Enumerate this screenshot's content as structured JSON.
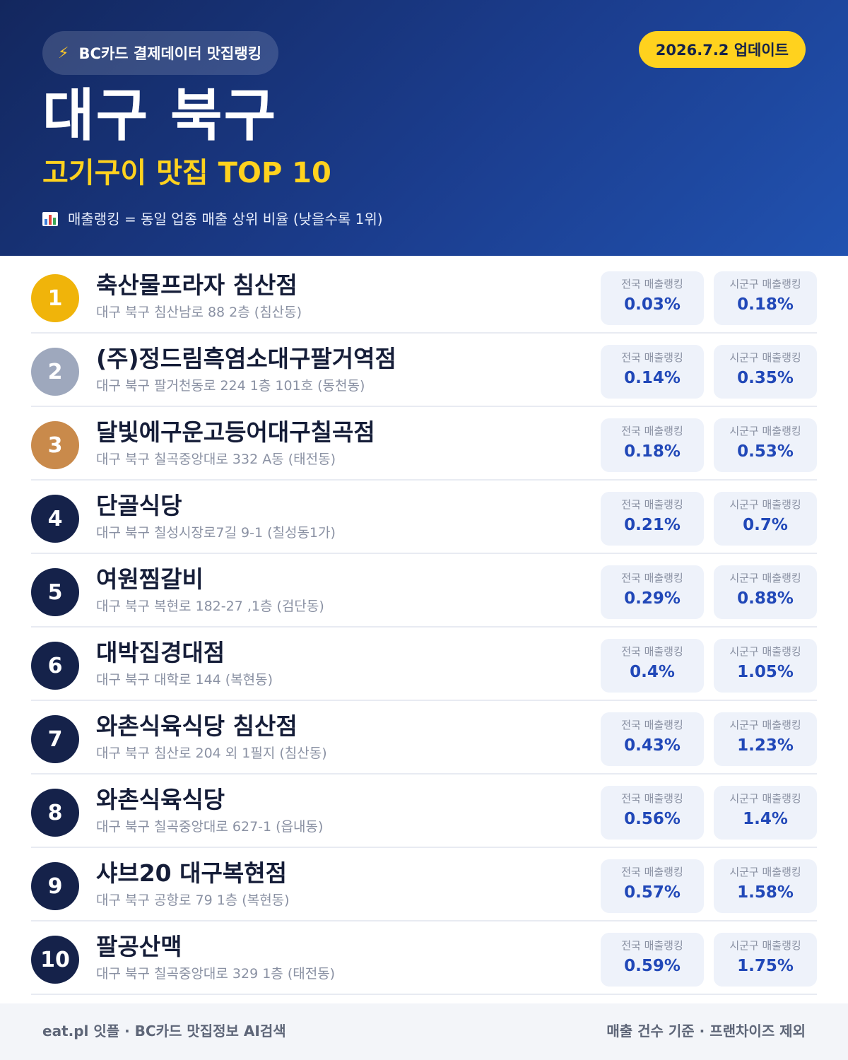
{
  "header": {
    "source_badge": "BC카드 결제데이터 맛집랭킹",
    "update_badge": "2026.7.2 업데이트",
    "region": "대구 북구",
    "category": "고기구이 맛집 TOP 10",
    "note": "매출랭킹 = 동일 업종 매출 상위 비율 (낮을수록 1위)",
    "icons": {
      "bolt": "lightning-icon",
      "chart": "bar-chart-icon"
    }
  },
  "stat_labels": {
    "national": "전국 매출랭킹",
    "local": "시군구 매출랭킹"
  },
  "colors": {
    "gold": "#f0b40a",
    "silver": "#9ea8bd",
    "bronze": "#c98a4b",
    "navy": "#15224a",
    "accent_yellow": "#ffd21e",
    "value_blue": "#2148b8"
  },
  "restaurants": [
    {
      "rank": "1",
      "name": "축산물프라자 침산점",
      "address": "대구 북구 침산남로 88 2층 (침산동)",
      "national": "0.03%",
      "local": "0.18%",
      "medal": "gold"
    },
    {
      "rank": "2",
      "name": "(주)정드림흑염소대구팔거역점",
      "address": "대구 북구 팔거천동로 224 1층 101호 (동천동)",
      "national": "0.14%",
      "local": "0.35%",
      "medal": "silver"
    },
    {
      "rank": "3",
      "name": "달빛에구운고등어대구칠곡점",
      "address": "대구 북구 칠곡중앙대로 332 A동 (태전동)",
      "national": "0.18%",
      "local": "0.53%",
      "medal": "bronze"
    },
    {
      "rank": "4",
      "name": "단골식당",
      "address": "대구 북구 칠성시장로7길 9-1 (칠성동1가)",
      "national": "0.21%",
      "local": "0.7%",
      "medal": "navy"
    },
    {
      "rank": "5",
      "name": "여원찜갈비",
      "address": "대구 북구 복현로 182-27 ,1층 (검단동)",
      "national": "0.29%",
      "local": "0.88%",
      "medal": "navy"
    },
    {
      "rank": "6",
      "name": "대박집경대점",
      "address": "대구 북구 대학로 144 (복현동)",
      "national": "0.4%",
      "local": "1.05%",
      "medal": "navy"
    },
    {
      "rank": "7",
      "name": "와촌식육식당 침산점",
      "address": "대구 북구 침산로 204 외 1필지 (침산동)",
      "national": "0.43%",
      "local": "1.23%",
      "medal": "navy"
    },
    {
      "rank": "8",
      "name": "와촌식육식당",
      "address": "대구 북구 칠곡중앙대로 627-1 (읍내동)",
      "national": "0.56%",
      "local": "1.4%",
      "medal": "navy"
    },
    {
      "rank": "9",
      "name": "샤브20 대구복현점",
      "address": "대구 북구 공항로 79 1층 (복현동)",
      "national": "0.57%",
      "local": "1.58%",
      "medal": "navy"
    },
    {
      "rank": "10",
      "name": "팔공산맥",
      "address": "대구 북구 칠곡중앙대로 329 1층 (태전동)",
      "national": "0.59%",
      "local": "1.75%",
      "medal": "navy"
    }
  ],
  "footer": {
    "left": "eat.pl 잇플 · BC카드 맛집정보 AI검색",
    "right": "매출 건수 기준 · 프랜차이즈 제외"
  }
}
